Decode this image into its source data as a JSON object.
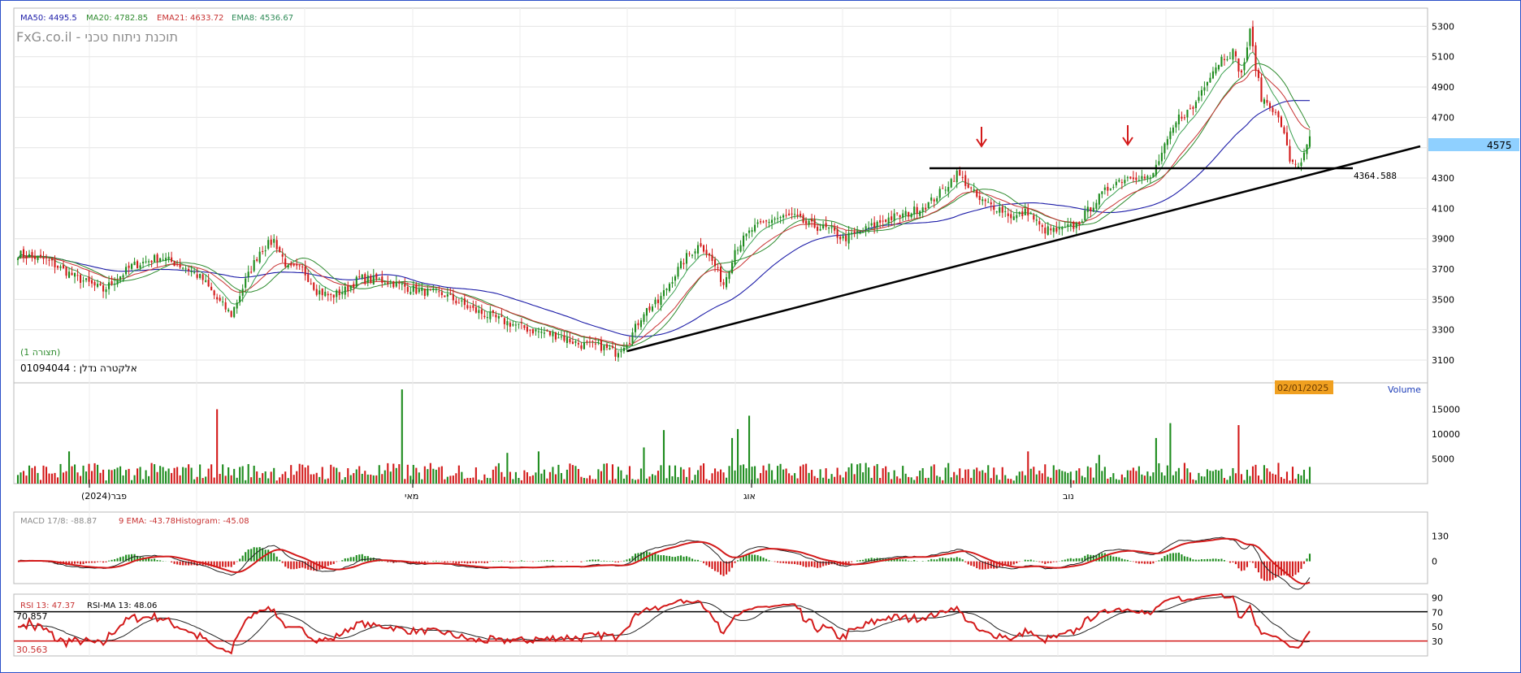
{
  "chart_data": [
    {
      "type": "candlestick",
      "title": "אלקטרה נדלן : 01094044",
      "watermark": "FxG.co.il - תוכנת ניתוח טכני",
      "view_label": "(תצורה 1)",
      "last_price": "4575",
      "support_label": "4364.588",
      "support_level": 4364.588,
      "ylim": [
        2950,
        5420
      ],
      "yticks": [
        3100,
        3300,
        3500,
        3700,
        3900,
        4100,
        4300,
        4500,
        4700,
        4900,
        5100,
        5300
      ],
      "xlabels": [
        "פבר(2024)",
        "מאי",
        "אוג",
        "נוב"
      ],
      "date_label": "02/01/2025",
      "indicators": [
        {
          "name": "MA50",
          "label": "MA50: 4495.5",
          "color": "#1c1ca8"
        },
        {
          "name": "MA20",
          "label": "MA20: 4782.85",
          "color": "#2e8b2e"
        },
        {
          "name": "EMA21",
          "label": "EMA21: 4633.72",
          "color": "#c83232"
        },
        {
          "name": "EMA8",
          "label": "EMA8: 4536.67",
          "color": "#2e8b57"
        }
      ],
      "anchors": [
        [
          0,
          3800
        ],
        [
          10,
          3760
        ],
        [
          20,
          3650
        ],
        [
          30,
          3560
        ],
        [
          40,
          3720
        ],
        [
          50,
          3780
        ],
        [
          60,
          3700
        ],
        [
          65,
          3630
        ],
        [
          70,
          3500
        ],
        [
          75,
          3400
        ],
        [
          80,
          3620
        ],
        [
          85,
          3820
        ],
        [
          90,
          3890
        ],
        [
          95,
          3700
        ],
        [
          100,
          3700
        ],
        [
          105,
          3560
        ],
        [
          110,
          3520
        ],
        [
          115,
          3560
        ],
        [
          120,
          3640
        ],
        [
          130,
          3620
        ],
        [
          140,
          3560
        ],
        [
          150,
          3530
        ],
        [
          160,
          3430
        ],
        [
          170,
          3360
        ],
        [
          180,
          3300
        ],
        [
          190,
          3260
        ],
        [
          198,
          3200
        ],
        [
          205,
          3190
        ],
        [
          210,
          3150
        ],
        [
          215,
          3240
        ],
        [
          220,
          3420
        ],
        [
          225,
          3480
        ],
        [
          230,
          3640
        ],
        [
          235,
          3780
        ],
        [
          240,
          3870
        ],
        [
          245,
          3720
        ],
        [
          248,
          3600
        ],
        [
          252,
          3830
        ],
        [
          258,
          3960
        ],
        [
          265,
          4030
        ],
        [
          272,
          4050
        ],
        [
          278,
          3990
        ],
        [
          285,
          3960
        ],
        [
          290,
          3900
        ],
        [
          297,
          3950
        ],
        [
          305,
          4030
        ],
        [
          312,
          4060
        ],
        [
          320,
          4130
        ],
        [
          325,
          4220
        ],
        [
          330,
          4330
        ],
        [
          333,
          4270
        ],
        [
          338,
          4150
        ],
        [
          345,
          4100
        ],
        [
          350,
          4040
        ],
        [
          355,
          4080
        ],
        [
          360,
          3960
        ],
        [
          366,
          3950
        ],
        [
          372,
          3990
        ],
        [
          378,
          4130
        ],
        [
          385,
          4270
        ],
        [
          392,
          4320
        ],
        [
          398,
          4290
        ],
        [
          402,
          4460
        ],
        [
          408,
          4700
        ],
        [
          413,
          4760
        ],
        [
          418,
          4960
        ],
        [
          423,
          5090
        ],
        [
          427,
          5130
        ],
        [
          430,
          4980
        ],
        [
          433,
          5260
        ],
        [
          437,
          4820
        ],
        [
          440,
          4790
        ],
        [
          444,
          4650
        ],
        [
          447,
          4420
        ],
        [
          451,
          4380
        ],
        [
          454,
          4575
        ]
      ],
      "volume": {
        "label": "Volume",
        "yticks": [
          5000,
          10000,
          15000
        ],
        "spikes": [
          [
            18,
            6500
          ],
          [
            70,
            15000
          ],
          [
            135,
            19000
          ],
          [
            172,
            6200
          ],
          [
            183,
            6500
          ],
          [
            220,
            7300
          ],
          [
            227,
            10800
          ],
          [
            251,
            9200
          ],
          [
            253,
            11000
          ],
          [
            257,
            13700
          ],
          [
            400,
            9200
          ],
          [
            405,
            12200
          ],
          [
            429,
            11800
          ],
          [
            355,
            6500
          ],
          [
            380,
            5800
          ]
        ]
      },
      "macd": {
        "label": "MACD 17/8: -88.87",
        "signal_label": "9 EMA: -43.78",
        "histogram_label": "Histogram: -45.08",
        "yticks": [
          130,
          0
        ]
      },
      "rsi": {
        "label": "RSI 13: 47.37",
        "ma_label": "RSI-MA 13: 48.06",
        "upper_label": "70.857",
        "lower_label": "30.563",
        "upper": 70.857,
        "lower": 30.563,
        "yticks": [
          90,
          70,
          50,
          30
        ]
      }
    }
  ]
}
